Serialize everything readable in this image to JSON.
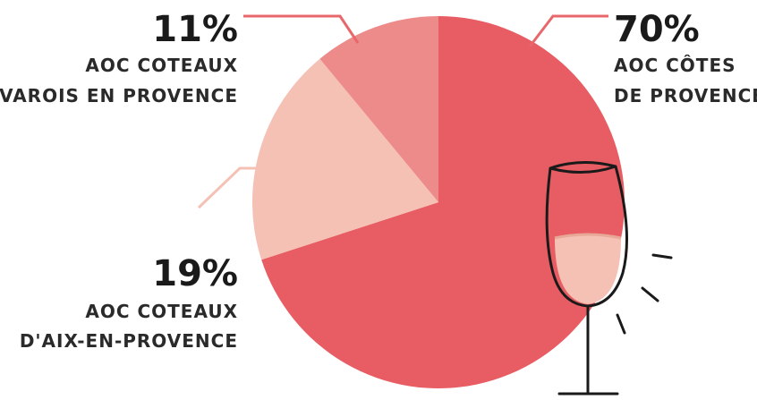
{
  "chart_data": {
    "type": "pie",
    "categories": [
      [
        "AOC CÔTES",
        "DE PROVENCE"
      ],
      [
        "AOC COTEAUX",
        "D'AIX-EN-PROVENCE"
      ],
      [
        "AOC COTEAUX",
        "VAROIS EN PROVENCE"
      ]
    ],
    "values": [
      70,
      19,
      11
    ],
    "value_labels": [
      "70%",
      "19%",
      "11%"
    ],
    "colors": [
      "#e85d63",
      "#f5c1b5",
      "#ed8b8b"
    ]
  }
}
